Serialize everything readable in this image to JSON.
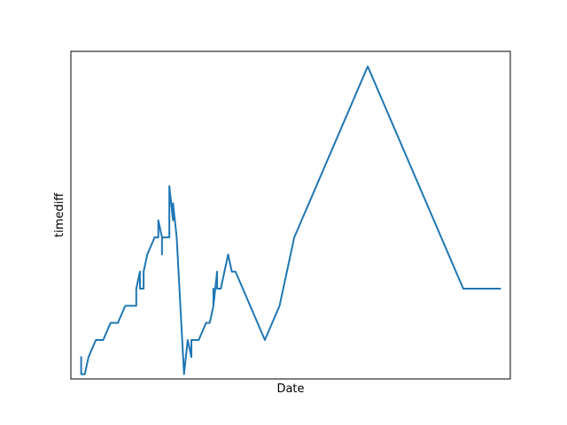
{
  "chart_data": {
    "type": "line",
    "title": "",
    "xlabel": "Date",
    "ylabel": "timediff",
    "xticks": [],
    "yticks": [],
    "grid": false,
    "legend": "none",
    "xlim": [
      -1.4,
      58.4
    ],
    "ylim": [
      -1.4,
      94.4
    ],
    "series": [
      {
        "color": "#1f77b4",
        "x": [
          0,
          0,
          0,
          0,
          0.5,
          1,
          2,
          3,
          4,
          5,
          6,
          7,
          7.5,
          7.5,
          8,
          8,
          8.5,
          8.5,
          9,
          10,
          10.5,
          10.5,
          11,
          11,
          11,
          12,
          12,
          12.5,
          12.5,
          13,
          13,
          14,
          14,
          14.5,
          15,
          15,
          15,
          15.5,
          16,
          16,
          17,
          17.5,
          18,
          18,
          18,
          18.5,
          18.5,
          19,
          19.5,
          20,
          20,
          20.5,
          21,
          22,
          23,
          24,
          25,
          26,
          27,
          28,
          29,
          30,
          31,
          32,
          33,
          34,
          35,
          36,
          37,
          38,
          39,
          40,
          41,
          42,
          43,
          44,
          45,
          46,
          47,
          48,
          49,
          50,
          51,
          52,
          53,
          54,
          55,
          56,
          57
        ],
        "y": [
          4,
          5,
          0,
          0,
          0,
          5,
          10,
          10,
          15,
          15,
          20,
          20,
          20,
          25,
          30,
          25,
          25,
          30,
          35,
          40,
          40,
          45,
          40,
          35,
          40,
          40,
          55,
          45,
          50,
          40,
          40,
          0,
          0,
          10,
          5,
          10,
          10,
          10,
          10,
          10,
          15,
          15,
          20,
          25,
          20,
          30,
          25,
          25,
          30,
          35,
          35,
          30,
          30,
          25,
          20,
          15,
          10,
          15,
          20,
          30,
          40,
          45,
          50,
          55,
          60,
          65,
          70,
          75,
          80,
          85,
          90,
          85,
          80,
          75,
          70,
          65,
          60,
          55,
          50,
          45,
          40,
          35,
          30,
          25,
          25,
          25,
          25,
          25,
          25
        ]
      }
    ]
  }
}
